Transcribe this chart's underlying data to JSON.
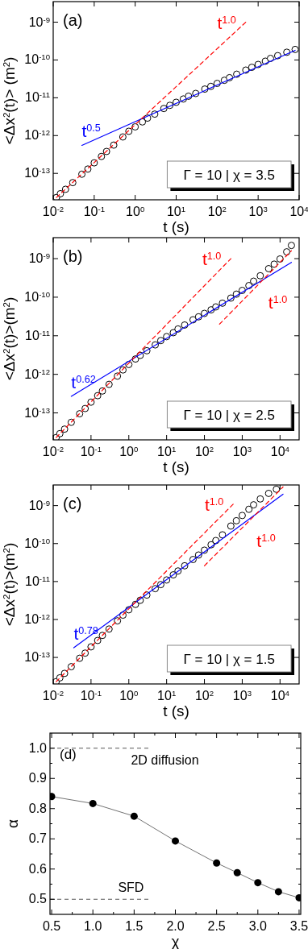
{
  "chart_data": [
    {
      "type": "scatter",
      "title": "(a)",
      "xlabel": "t (s)",
      "ylabel": "<Δx$^{2}$(t)> (m$^{2}$)",
      "log": "xy",
      "xlim": [
        0.01,
        10000
      ],
      "ylim": [
        2e-14,
        3.5e-09
      ],
      "xticks": [
        {
          "value": 0.01,
          "label": "10$^{-2}$"
        },
        {
          "value": 0.1,
          "label": "10$^{-1}$"
        },
        {
          "value": 1,
          "label": "10$^{0}$"
        },
        {
          "value": 10,
          "label": "10$^{1}$"
        },
        {
          "value": 100,
          "label": "10$^{2}$"
        },
        {
          "value": 1000,
          "label": "10$^{3}$"
        },
        {
          "value": 10000,
          "label": "10$^{4}$"
        }
      ],
      "yticks": [
        {
          "value": 1e-13,
          "label": "10$^{-13}$"
        },
        {
          "value": 1e-12,
          "label": "10$^{-12}$"
        },
        {
          "value": 1e-11,
          "label": "10$^{-11}$"
        },
        {
          "value": 1e-10,
          "label": "10$^{-10}$"
        },
        {
          "value": 1e-09,
          "label": "10$^{-9}$"
        }
      ],
      "annotations": [
        "Γ = 10 | χ = 3.5"
      ],
      "series": [
        {
          "color": "#000000",
          "marker": "circle",
          "x": [
            0.012,
            0.015,
            0.02,
            0.03,
            0.05,
            0.07,
            0.1,
            0.15,
            0.2,
            0.3,
            0.5,
            0.7,
            1,
            1.5,
            2,
            3,
            5,
            7,
            10,
            15,
            20,
            30,
            50,
            70,
            100,
            150,
            200,
            300,
            500,
            700,
            1000,
            1500,
            2000,
            3000,
            5000,
            8000
          ],
          "values": [
            2.3e-14,
            2.9e-14,
            3.8e-14,
            5.7e-14,
            9.5e-14,
            1.3e-13,
            1.9e-13,
            2.8e-13,
            3.8e-13,
            5.6e-13,
            9.2e-13,
            1.3e-12,
            1.7e-12,
            2.3e-12,
            2.9e-12,
            3.7e-12,
            5.2e-12,
            6.3e-12,
            7.6e-12,
            9.3e-12,
            1.1e-11,
            1.3e-11,
            1.7e-11,
            2e-11,
            2.4e-11,
            2.9e-11,
            3.4e-11,
            4.2e-11,
            5.4e-11,
            6.4e-11,
            7.6e-11,
            9.3e-11,
            1.1e-10,
            1.3e-10,
            1.6e-10,
            1.9e-10
          ]
        },
        {
          "type": "line",
          "name": "t$^{0.5}$",
          "color": "#0000ff",
          "line_style": "solid",
          "marker": "none",
          "x": [
            0.05,
            8000
          ],
          "values": [
            5.5e-13,
            1.8e-10
          ]
        },
        {
          "type": "line",
          "name": "t$^{1.0}$",
          "color": "#ff0000",
          "line_style": "dashed",
          "marker": "none",
          "x": [
            0.012,
            500
          ],
          "values": [
            2.3e-14,
            1e-09
          ]
        }
      ]
    },
    {
      "type": "scatter",
      "title": "(b)",
      "xlabel": "t (s)",
      "ylabel": "<Δx$^{2}$(t)>(m$^{2}$)",
      "log": "xy",
      "xlim": [
        0.01,
        32000
      ],
      "ylim": [
        2e-14,
        3.5e-09
      ],
      "xticks": [
        {
          "value": 0.01,
          "label": "10$^{-2}$"
        },
        {
          "value": 0.1,
          "label": "10$^{-1}$"
        },
        {
          "value": 1,
          "label": "10$^{0}$"
        },
        {
          "value": 10,
          "label": "10$^{1}$"
        },
        {
          "value": 100,
          "label": "10$^{2}$"
        },
        {
          "value": 1000,
          "label": "10$^{3}$"
        },
        {
          "value": 10000,
          "label": "10$^{4}$"
        }
      ],
      "yticks": [
        {
          "value": 1e-13,
          "label": "10$^{-13}$"
        },
        {
          "value": 1e-12,
          "label": "10$^{-12}$"
        },
        {
          "value": 1e-11,
          "label": "10$^{-11}$"
        },
        {
          "value": 1e-10,
          "label": "10$^{-10}$"
        },
        {
          "value": 1e-09,
          "label": "10$^{-9}$"
        }
      ],
      "annotations": [
        "Γ = 10 | χ = 2.5"
      ],
      "series": [
        {
          "color": "#000000",
          "marker": "circle",
          "x": [
            0.012,
            0.015,
            0.02,
            0.03,
            0.05,
            0.07,
            0.1,
            0.15,
            0.2,
            0.3,
            0.5,
            0.7,
            1,
            1.5,
            2,
            3,
            5,
            7,
            10,
            15,
            20,
            30,
            50,
            70,
            100,
            150,
            200,
            300,
            500,
            700,
            1000,
            1500,
            2000,
            3000,
            5000,
            7000,
            10000,
            15000,
            20000
          ],
          "values": [
            2.3e-14,
            2.9e-14,
            3.8e-14,
            5.7e-14,
            9.5e-14,
            1.3e-13,
            1.9e-13,
            2.8e-13,
            3.7e-13,
            5.5e-13,
            9e-13,
            1.3e-12,
            1.8e-12,
            2.5e-12,
            3.1e-12,
            4.1e-12,
            5.8e-12,
            7.5e-12,
            9.5e-12,
            1.2e-11,
            1.5e-11,
            1.9e-11,
            2.6e-11,
            3.1e-11,
            3.8e-11,
            4.7e-11,
            5.6e-11,
            7e-11,
            9.5e-11,
            1.2e-10,
            1.5e-10,
            2e-10,
            2.6e-10,
            3.6e-10,
            5.5e-10,
            7.2e-10,
            9.8e-10,
            1.5e-09,
            2.2e-09
          ]
        },
        {
          "type": "line",
          "name": "t$^{0.62}$",
          "color": "#0000ff",
          "line_style": "solid",
          "marker": "none",
          "x": [
            0.03,
            20000
          ],
          "values": [
            2.7e-13,
            8e-10
          ]
        },
        {
          "type": "line",
          "name": "t$^{1.0}$",
          "color": "#ff0000",
          "line_style": "dashed",
          "marker": "none",
          "x": [
            0.012,
            500
          ],
          "values": [
            2.3e-14,
            1e-09
          ]
        },
        {
          "type": "line",
          "name": "t$^{1.0}$",
          "color": "#ff0000",
          "line_style": "dashed",
          "marker": "none",
          "x": [
            250,
            20000
          ],
          "values": [
            2e-11,
            1.6e-09
          ]
        }
      ]
    },
    {
      "type": "scatter",
      "title": "(c)",
      "xlabel": "t (s)",
      "ylabel": "<Δx$^{2}$(t)>(m$^{2}$)",
      "log": "xy",
      "xlim": [
        0.01,
        32000
      ],
      "ylim": [
        2e-14,
        3.5e-09
      ],
      "xticks": [
        {
          "value": 0.01,
          "label": "10$^{-2}$"
        },
        {
          "value": 0.1,
          "label": "10$^{-1}$"
        },
        {
          "value": 1,
          "label": "10$^{0}$"
        },
        {
          "value": 10,
          "label": "10$^{1}$"
        },
        {
          "value": 100,
          "label": "10$^{2}$"
        },
        {
          "value": 1000,
          "label": "10$^{3}$"
        },
        {
          "value": 10000,
          "label": "10$^{4}$"
        }
      ],
      "yticks": [
        {
          "value": 1e-13,
          "label": "10$^{-13}$"
        },
        {
          "value": 1e-12,
          "label": "10$^{-12}$"
        },
        {
          "value": 1e-11,
          "label": "10$^{-11}$"
        },
        {
          "value": 1e-10,
          "label": "10$^{-10}$"
        },
        {
          "value": 1e-09,
          "label": "10$^{-9}$"
        }
      ],
      "annotations": [
        "Γ = 10 | χ = 1.5"
      ],
      "series": [
        {
          "color": "#000000",
          "marker": "circle",
          "x": [
            0.012,
            0.015,
            0.02,
            0.03,
            0.05,
            0.07,
            0.1,
            0.15,
            0.2,
            0.3,
            0.5,
            0.7,
            1,
            1.5,
            2,
            3,
            5,
            7,
            10,
            15,
            20,
            30,
            50,
            70,
            100,
            150,
            200,
            300,
            500,
            700,
            1000,
            1500,
            2000,
            3000,
            5000,
            8000
          ],
          "values": [
            2.3e-14,
            2.9e-14,
            3.8e-14,
            5.7e-14,
            9.5e-14,
            1.3e-13,
            1.9e-13,
            2.8e-13,
            3.8e-13,
            5.6e-13,
            9.2e-13,
            1.3e-12,
            1.8e-12,
            2.5e-12,
            3.2e-12,
            4.4e-12,
            6.5e-12,
            8.3e-12,
            1.1e-11,
            1.5e-11,
            1.9e-11,
            2.6e-11,
            3.8e-11,
            5e-11,
            6.7e-11,
            9.3e-11,
            1.2e-10,
            1.7e-10,
            2.9e-10,
            4e-10,
            5.5e-10,
            8e-10,
            1.05e-09,
            1.5e-09,
            2.1e-09,
            2.7e-09
          ]
        },
        {
          "type": "line",
          "name": "t$^{0.78}$",
          "color": "#0000ff",
          "line_style": "solid",
          "marker": "none",
          "x": [
            0.035,
            12000
          ],
          "values": [
            1.8e-13,
            2e-09
          ]
        },
        {
          "type": "line",
          "name": "t$^{1.0}$",
          "color": "#ff0000",
          "line_style": "dashed",
          "marker": "none",
          "x": [
            0.012,
            580
          ],
          "values": [
            2.3e-14,
            1.1e-09
          ]
        },
        {
          "type": "line",
          "name": "t$^{1.0}$",
          "color": "#ff0000",
          "line_style": "dashed",
          "marker": "none",
          "x": [
            100,
            12000
          ],
          "values": [
            2.6e-11,
            3.1e-09
          ]
        }
      ]
    },
    {
      "type": "line",
      "title": "(d)",
      "xlabel": "χ",
      "ylabel": "α",
      "xlim": [
        0.48,
        3.52
      ],
      "ylim": [
        0.45,
        1.05
      ],
      "marker": "circle",
      "xticks": [
        0.5,
        {
          "value": 0.75,
          "label": null
        },
        {
          "value": 1,
          "label": "1.0"
        },
        {
          "value": 1.25,
          "label": null
        },
        1.5,
        {
          "value": 1.75,
          "label": null
        },
        {
          "value": 2,
          "label": "2.0"
        },
        {
          "value": 2.25,
          "label": null
        },
        2.5,
        {
          "value": 2.75,
          "label": null
        },
        {
          "value": 3,
          "label": "3.0"
        },
        {
          "value": 3.25,
          "label": null
        },
        3.5
      ],
      "yticks": [
        0.5,
        {
          "value": 0.55,
          "label": null
        },
        0.6,
        {
          "value": 0.65,
          "label": null
        },
        0.7,
        {
          "value": 0.75,
          "label": null
        },
        0.8,
        {
          "value": 0.85,
          "label": null
        },
        0.9,
        {
          "value": 0.95,
          "label": null
        },
        {
          "value": 1,
          "label": "1.0"
        }
      ],
      "ref_lines": [
        {
          "axis": "y",
          "value": 1,
          "label": "2D diffusion",
          "color": "#555555",
          "line_style": "dashed"
        },
        {
          "axis": "y",
          "value": 0.5,
          "label": "SFD",
          "color": "#555555",
          "line_style": "dashed"
        }
      ],
      "series": [
        {
          "color": "#000000",
          "x": [
            0.5,
            1,
            1.5,
            2,
            2.5,
            2.75,
            3,
            3.25,
            3.5
          ],
          "values": [
            0.84,
            0.817,
            0.775,
            0.693,
            0.62,
            0.588,
            0.555,
            0.525,
            0.505
          ]
        }
      ]
    }
  ]
}
